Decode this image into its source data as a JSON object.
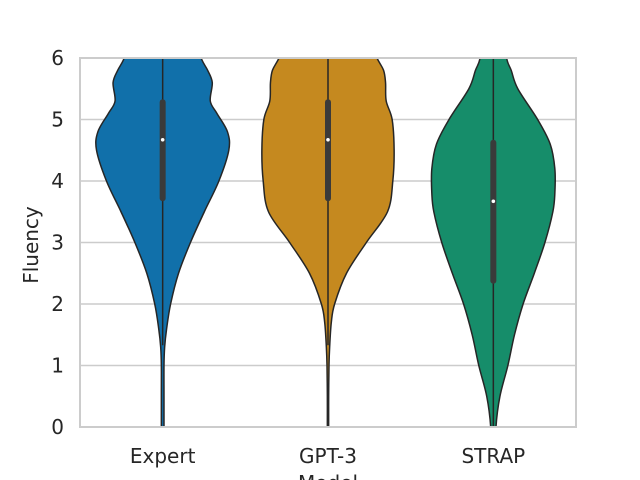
{
  "chart_data": {
    "type": "violin",
    "xlabel": "Model",
    "ylabel": "Fluency",
    "ylim": [
      0,
      6
    ],
    "yticks": [
      "0",
      "1",
      "2",
      "3",
      "4",
      "5",
      "6"
    ],
    "grid": "horizontal",
    "categories": [
      "Expert",
      "GPT-3",
      "STRAP"
    ],
    "series": [
      {
        "category": "Expert",
        "color": "#1170aa",
        "whisker": [
          1.33,
          6.0
        ],
        "q1": 3.67,
        "q3": 5.33,
        "median": 4.67,
        "density_width": [
          [
            0,
            0.02
          ],
          [
            0.5,
            0.02
          ],
          [
            1.0,
            0.02
          ],
          [
            1.3,
            0.03
          ],
          [
            1.6,
            0.06
          ],
          [
            2.0,
            0.12
          ],
          [
            2.5,
            0.24
          ],
          [
            3.0,
            0.42
          ],
          [
            3.5,
            0.63
          ],
          [
            4.0,
            0.85
          ],
          [
            4.5,
            1.0
          ],
          [
            4.8,
            0.98
          ],
          [
            5.1,
            0.82
          ],
          [
            5.3,
            0.72
          ],
          [
            5.6,
            0.75
          ],
          [
            5.8,
            0.68
          ],
          [
            6.0,
            0.58
          ]
        ]
      },
      {
        "category": "GPT-3",
        "color": "#c5891f",
        "whisker": [
          1.33,
          6.0
        ],
        "q1": 3.67,
        "q3": 5.33,
        "median": 4.67,
        "density_width": [
          [
            0,
            0.01
          ],
          [
            0.5,
            0.01
          ],
          [
            1.0,
            0.015
          ],
          [
            1.3,
            0.025
          ],
          [
            1.7,
            0.05
          ],
          [
            2.0,
            0.1
          ],
          [
            2.5,
            0.28
          ],
          [
            3.0,
            0.58
          ],
          [
            3.5,
            0.9
          ],
          [
            4.0,
            0.98
          ],
          [
            4.5,
            1.0
          ],
          [
            5.0,
            0.97
          ],
          [
            5.3,
            0.88
          ],
          [
            5.6,
            0.87
          ],
          [
            5.8,
            0.84
          ],
          [
            6.0,
            0.74
          ]
        ]
      },
      {
        "category": "STRAP",
        "color": "#168d6a",
        "whisker": [
          0.0,
          6.0
        ],
        "q1": 2.33,
        "q3": 4.67,
        "median": 3.67,
        "density_width": [
          [
            0,
            0.04
          ],
          [
            0.5,
            0.1
          ],
          [
            1.0,
            0.22
          ],
          [
            1.5,
            0.32
          ],
          [
            2.0,
            0.45
          ],
          [
            2.5,
            0.62
          ],
          [
            3.0,
            0.78
          ],
          [
            3.5,
            0.9
          ],
          [
            3.8,
            0.93
          ],
          [
            4.2,
            0.93
          ],
          [
            4.6,
            0.86
          ],
          [
            5.0,
            0.67
          ],
          [
            5.5,
            0.37
          ],
          [
            5.8,
            0.27
          ],
          [
            6.0,
            0.2
          ]
        ]
      }
    ]
  }
}
